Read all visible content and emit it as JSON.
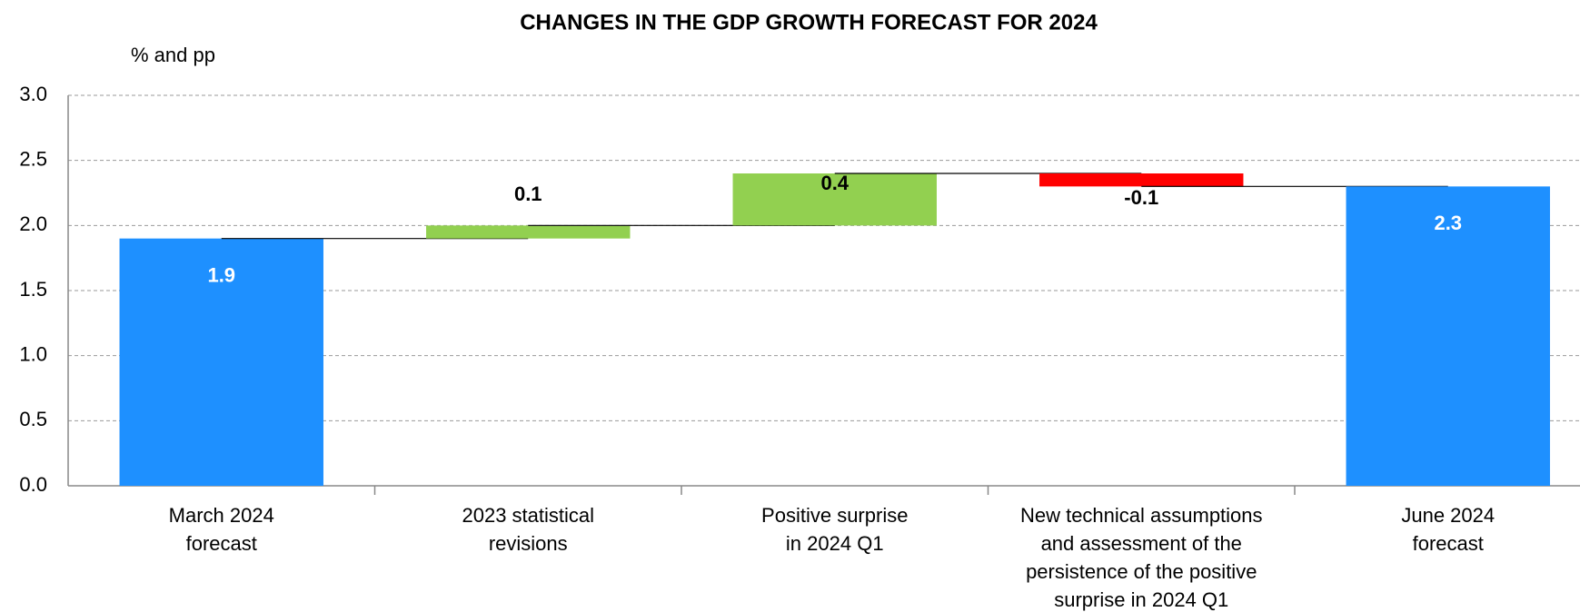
{
  "chart_data": {
    "type": "waterfall",
    "title": "CHANGES IN THE GDP GROWTH FORECAST FOR 2024",
    "y_label": "% and pp",
    "categories": [
      [
        "March 2024",
        "forecast"
      ],
      [
        "2023 statistical",
        "revisions"
      ],
      [
        "Positive surprise",
        "in 2024 Q1"
      ],
      [
        "New technical assumptions",
        "and assessment of the",
        "persistence of the positive",
        "surprise in 2024 Q1"
      ],
      [
        "June 2024",
        "forecast"
      ]
    ],
    "values": [
      1.9,
      0.1,
      0.4,
      -0.1,
      2.3
    ],
    "kinds": [
      "total",
      "delta",
      "delta",
      "delta",
      "total"
    ],
    "colors": [
      "#1e90ff",
      "#92d050",
      "#92d050",
      "#ff0000",
      "#1e90ff"
    ],
    "ylim": [
      0,
      3
    ],
    "yticks": [
      {
        "value": 0,
        "label": "0.0"
      },
      0.5,
      {
        "value": 1,
        "label": "1.0"
      },
      1.5,
      {
        "value": 2,
        "label": "2.0"
      },
      2.5,
      {
        "value": 3,
        "label": "3.0"
      }
    ],
    "grid": true
  }
}
